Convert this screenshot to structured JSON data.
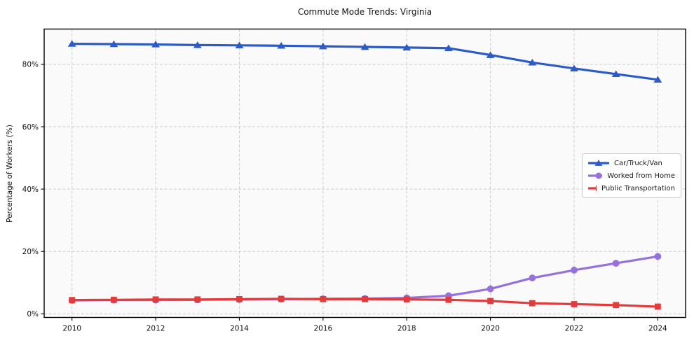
{
  "chart_data": {
    "type": "line",
    "title": "Commute Mode Trends: Virginia",
    "xlabel": "",
    "ylabel": "Percentage of Workers (%)",
    "x": [
      2010,
      2011,
      2012,
      2013,
      2014,
      2015,
      2016,
      2017,
      2018,
      2019,
      2020,
      2021,
      2022,
      2023,
      2024
    ],
    "series": [
      {
        "name": "Car/Truck/Van",
        "marker": "triangle",
        "color": "#2b5bc7",
        "values": [
          86.6,
          86.5,
          86.4,
          86.2,
          86.1,
          86.0,
          85.8,
          85.6,
          85.4,
          85.2,
          83.0,
          80.6,
          78.7,
          76.9,
          75.1
        ]
      },
      {
        "name": "Worked from Home",
        "marker": "circle",
        "color": "#9671d9",
        "values": [
          4.3,
          4.4,
          4.4,
          4.5,
          4.6,
          4.7,
          4.8,
          4.9,
          5.1,
          5.8,
          8.0,
          11.5,
          14.0,
          16.2,
          18.4
        ]
      },
      {
        "name": "Public Transportation",
        "marker": "square",
        "color": "#e23b3c",
        "values": [
          4.4,
          4.5,
          4.6,
          4.6,
          4.7,
          4.8,
          4.7,
          4.7,
          4.6,
          4.5,
          4.1,
          3.4,
          3.1,
          2.8,
          2.3
        ]
      }
    ],
    "xticks": [
      2010,
      2012,
      2014,
      2016,
      2018,
      2020,
      2022,
      2024
    ],
    "yticks": [
      0,
      20,
      40,
      60,
      80
    ],
    "ytick_suffix": "%",
    "ylim": [
      -1.2,
      91.3
    ],
    "xlim": [
      2009.3,
      2024.7
    ],
    "grid": true,
    "grid_style": "dashed",
    "legend_position": "center right",
    "colors": {
      "grid": "#cccccc",
      "spine": "#000000",
      "plot_background": "#fafafa",
      "figure_background": "#ffffff",
      "tick_text": "#111111"
    }
  }
}
